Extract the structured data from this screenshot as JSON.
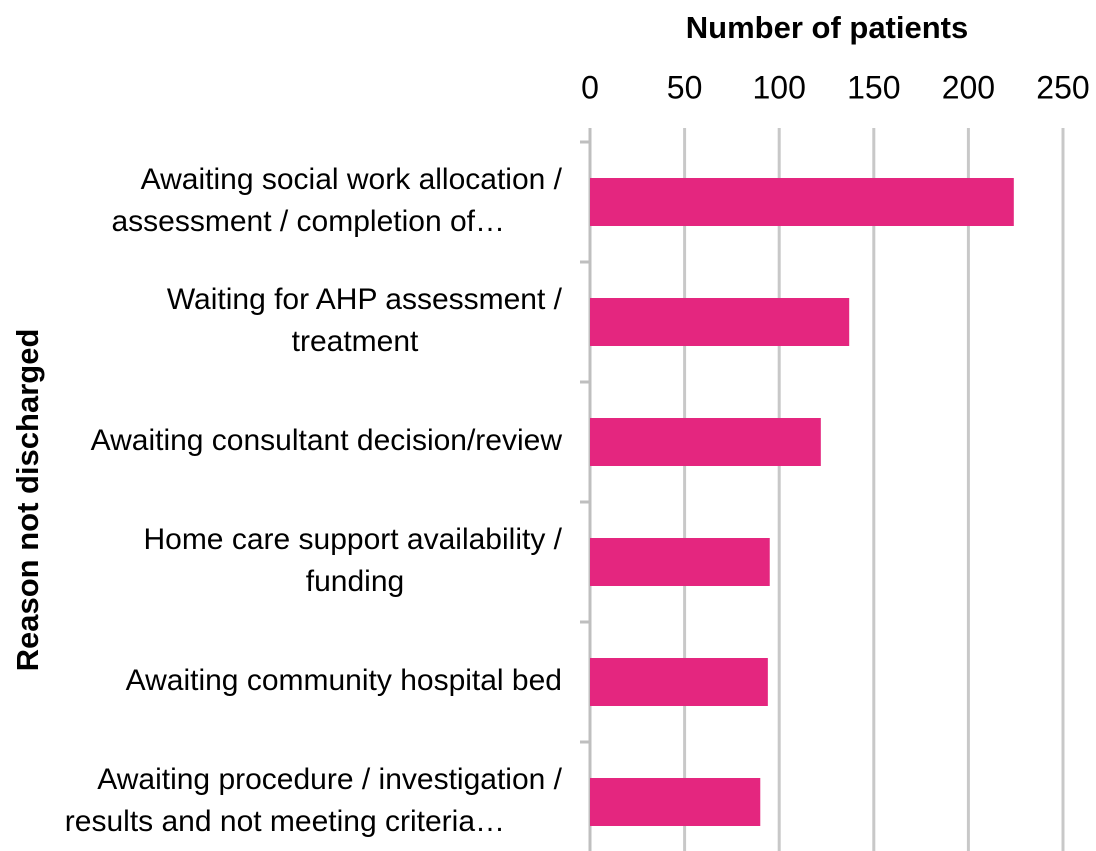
{
  "chart_data": {
    "type": "bar",
    "orientation": "horizontal",
    "xlabel": "Number of patients",
    "ylabel": "Reason not discharged",
    "categories": [
      [
        "Awaiting social work allocation /",
        "assessment / completion of…"
      ],
      [
        "Waiting for AHP assessment /",
        "treatment"
      ],
      [
        "Awaiting consultant decision/review"
      ],
      [
        "Home care support availability /",
        "funding"
      ],
      [
        "Awaiting community hospital bed"
      ],
      [
        "Awaiting procedure / investigation /",
        "results and not meeting criteria…"
      ]
    ],
    "values": [
      224,
      137,
      122,
      95,
      94,
      90
    ],
    "color": "#e4267f",
    "xlim": [
      0,
      250
    ],
    "xticks": [
      0,
      50,
      100,
      150,
      200,
      250
    ],
    "grid": true
  }
}
